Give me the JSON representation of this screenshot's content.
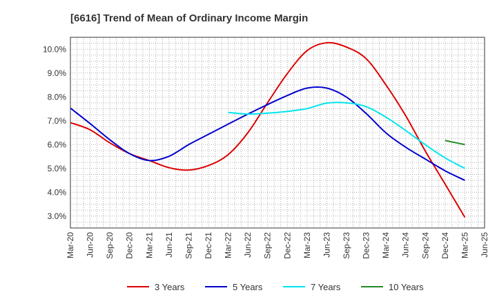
{
  "chart_data": {
    "type": "line",
    "title": "[6616]  Trend of Mean of Ordinary Income Margin",
    "xlabel": "",
    "ylabel": "",
    "x_start": "2020-03",
    "x_step_months": 3,
    "x_ticks": [
      "Mar-20",
      "Jun-20",
      "Sep-20",
      "Dec-20",
      "Mar-21",
      "Jun-21",
      "Sep-21",
      "Dec-21",
      "Mar-22",
      "Jun-22",
      "Sep-22",
      "Dec-22",
      "Mar-23",
      "Jun-23",
      "Sep-23",
      "Dec-23",
      "Mar-24",
      "Jun-24",
      "Sep-24",
      "Dec-24",
      "Mar-25",
      "Jun-25"
    ],
    "y_ticks": [
      "3.0%",
      "4.0%",
      "5.0%",
      "6.0%",
      "7.0%",
      "8.0%",
      "9.0%",
      "10.0%"
    ],
    "y_tick_values": [
      3,
      4,
      5,
      6,
      7,
      8,
      9,
      10
    ],
    "ylim": [
      2.5,
      10.5
    ],
    "grid": true,
    "legend_position": "bottom",
    "series": [
      {
        "name": "3 Years",
        "color": "#dd0000",
        "values": [
          6.92,
          6.62,
          6.07,
          5.62,
          5.33,
          5.03,
          4.93,
          5.12,
          5.58,
          6.5,
          7.76,
          8.98,
          9.94,
          10.27,
          10.09,
          9.6,
          8.5,
          7.21,
          5.72,
          4.34,
          2.95
        ]
      },
      {
        "name": "5 Years",
        "color": "#0000cc",
        "values": [
          7.53,
          6.88,
          6.2,
          5.62,
          5.33,
          5.51,
          6.0,
          6.43,
          6.86,
          7.28,
          7.68,
          8.06,
          8.37,
          8.37,
          7.99,
          7.3,
          6.49,
          5.89,
          5.39,
          4.9,
          4.5
        ]
      },
      {
        "name": "7 Years",
        "color": "#00e5ee",
        "values": [
          null,
          null,
          null,
          null,
          null,
          null,
          null,
          null,
          7.35,
          7.28,
          7.32,
          7.39,
          7.51,
          7.74,
          7.75,
          7.59,
          7.15,
          6.59,
          5.99,
          5.44,
          5.0
        ]
      },
      {
        "name": "10 Years",
        "color": "#228B22",
        "values": [
          null,
          null,
          null,
          null,
          null,
          null,
          null,
          null,
          null,
          null,
          null,
          null,
          null,
          null,
          null,
          null,
          null,
          null,
          null,
          6.17,
          6.0
        ]
      }
    ]
  }
}
